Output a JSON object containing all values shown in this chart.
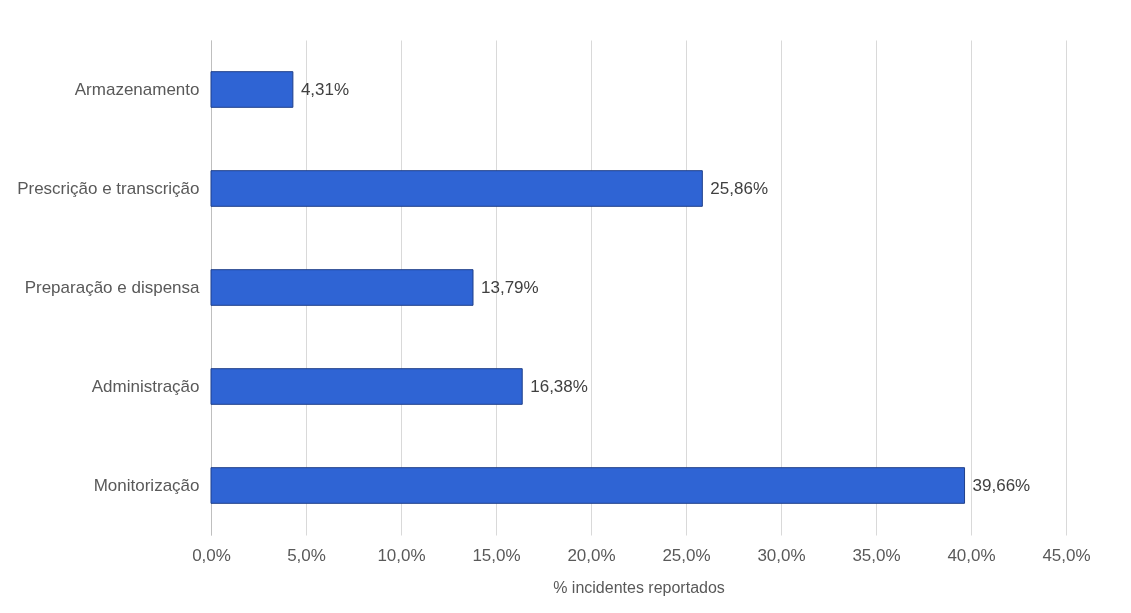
{
  "chart_data": {
    "type": "bar",
    "orientation": "horizontal",
    "xlabel": "% incidentes reportados",
    "categories": [
      "Armazenamento",
      "Prescrição e transcrição",
      "Preparação e dispensa",
      "Administração",
      "Monitorização"
    ],
    "values": [
      4.31,
      25.86,
      13.79,
      16.38,
      39.66
    ],
    "value_labels": [
      "4,31%",
      "25,86%",
      "13,79%",
      "16,38%",
      "39,66%"
    ],
    "color": "#2f64d4",
    "xlim": [
      0,
      45
    ],
    "xticks": [
      {
        "value": 0,
        "label": "0,0%"
      },
      {
        "value": 5,
        "label": "5,0%"
      },
      {
        "value": 10,
        "label": "10,0%"
      },
      {
        "value": 15,
        "label": "15,0%"
      },
      {
        "value": 20,
        "label": "20,0%"
      },
      {
        "value": 25,
        "label": "25,0%"
      },
      {
        "value": 30,
        "label": "30,0%"
      },
      {
        "value": 35,
        "label": "35,0%"
      },
      {
        "value": 40,
        "label": "40,0%"
      },
      {
        "value": 45,
        "label": "45,0%"
      }
    ],
    "grid": "x"
  }
}
